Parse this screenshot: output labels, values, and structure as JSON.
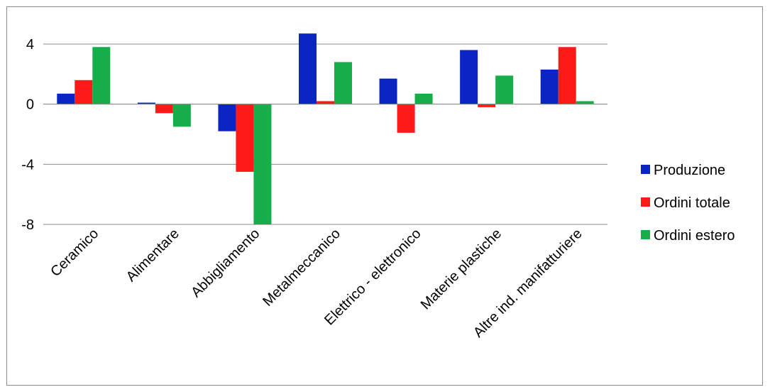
{
  "chart_data": {
    "type": "bar",
    "categories": [
      "Ceramico",
      "Alimentare",
      "Abbigliamento",
      "Metalmeccanico",
      "Elettrico - elettronico",
      "Materie plastiche",
      "Altre ind. manifatturiere"
    ],
    "series": [
      {
        "name": "Produzione",
        "color": "#0b24c4",
        "values": [
          0.7,
          0.1,
          -1.8,
          4.7,
          1.7,
          3.6,
          2.3
        ]
      },
      {
        "name": "Ordini totale",
        "color": "#ff1a1a",
        "values": [
          1.6,
          -0.6,
          -4.5,
          0.2,
          -1.9,
          -0.2,
          3.8
        ]
      },
      {
        "name": "Ordini estero",
        "color": "#16ad4a",
        "values": [
          3.8,
          -1.5,
          -8.1,
          2.8,
          0.7,
          1.9,
          0.2
        ]
      }
    ],
    "yticks": [
      "4",
      "0",
      "-4",
      "-8"
    ],
    "ylim": [
      -8,
      4
    ],
    "grid": true,
    "legend_position": "right"
  }
}
